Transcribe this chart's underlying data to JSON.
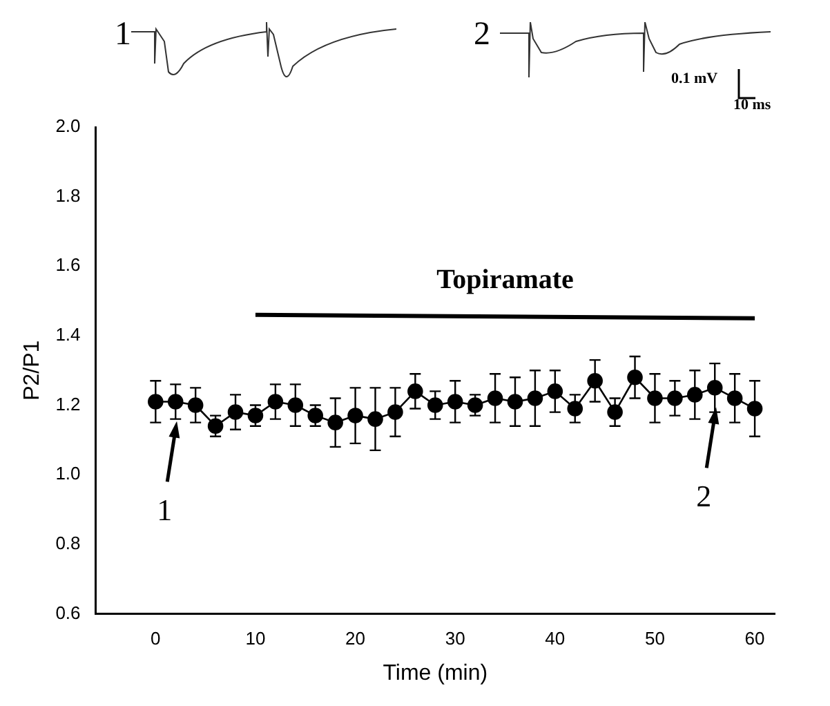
{
  "chart_data": {
    "type": "line",
    "xlabel": "Time (min)",
    "ylabel": "P2/P1",
    "x": [
      0,
      2,
      4,
      6,
      8,
      10,
      12,
      14,
      16,
      18,
      20,
      22,
      24,
      26,
      28,
      30,
      32,
      34,
      36,
      38,
      40,
      42,
      44,
      46,
      48,
      50,
      52,
      54,
      56,
      58,
      60
    ],
    "series": [
      {
        "color": "#000000",
        "values": [
          1.21,
          1.21,
          1.2,
          1.14,
          1.18,
          1.17,
          1.21,
          1.2,
          1.17,
          1.15,
          1.17,
          1.16,
          1.18,
          1.24,
          1.2,
          1.21,
          1.2,
          1.22,
          1.21,
          1.22,
          1.24,
          1.19,
          1.27,
          1.18,
          1.28,
          1.22,
          1.22,
          1.23,
          1.25,
          1.22,
          1.19
        ],
        "errors": [
          0.06,
          0.05,
          0.05,
          0.03,
          0.05,
          0.03,
          0.05,
          0.06,
          0.03,
          0.07,
          0.08,
          0.09,
          0.07,
          0.05,
          0.04,
          0.06,
          0.03,
          0.07,
          0.07,
          0.08,
          0.06,
          0.04,
          0.06,
          0.04,
          0.06,
          0.07,
          0.05,
          0.07,
          0.07,
          0.07,
          0.08
        ]
      },
      {
        "type": "line",
        "color": "#000000",
        "marker": "none",
        "x": [
          10,
          60
        ],
        "values": [
          1.46,
          1.45
        ]
      }
    ],
    "xlim": [
      -6,
      62
    ],
    "xticks": [
      0,
      10,
      20,
      30,
      40,
      50,
      60
    ],
    "ylim": [
      0.6,
      2.0
    ],
    "yticks": [
      0.6,
      0.8,
      {
        "value": 1.0,
        "label": "1.0"
      },
      1.2,
      1.4,
      1.6,
      1.8,
      {
        "value": 2.0,
        "label": "2.0"
      }
    ],
    "grid": false,
    "legend": false,
    "marker": "circle",
    "line_style": "solid",
    "annotations": [
      {
        "text": "1",
        "x": 2,
        "y": 1.21
      },
      {
        "text": "2",
        "x": 56,
        "y": 1.25
      },
      "1",
      "2",
      "0.1 mV",
      "10 ms",
      {
        "text": "Topiramate",
        "x": 35,
        "y": 1.455
      }
    ]
  }
}
